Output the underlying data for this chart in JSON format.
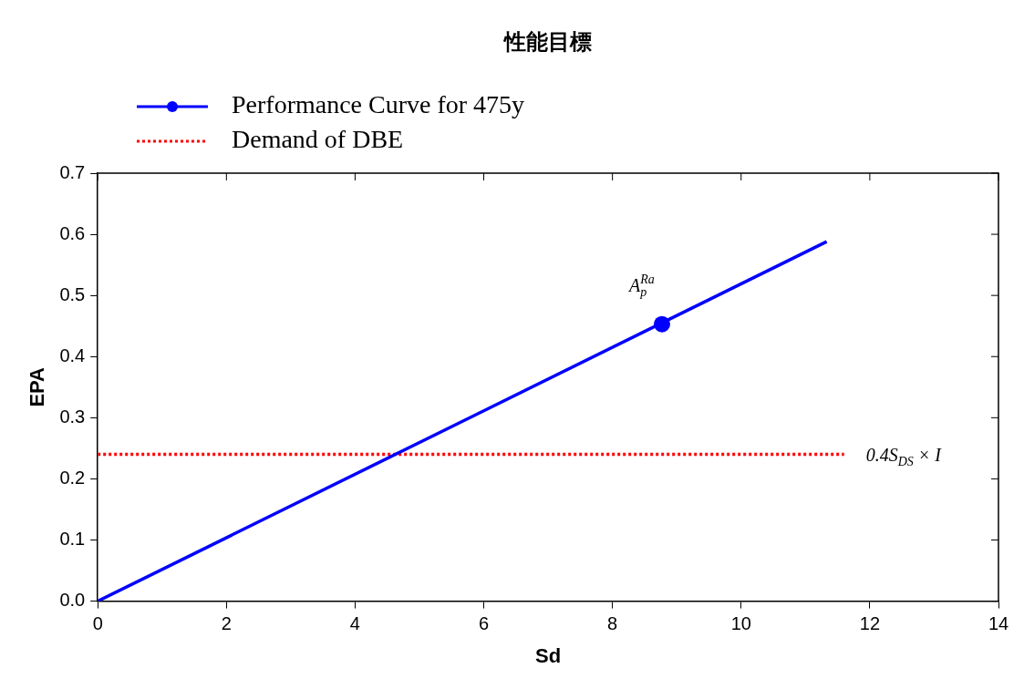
{
  "chart_data": {
    "type": "line",
    "title": "性能目標",
    "xlabel": "Sd",
    "ylabel": "EPA",
    "xlim": [
      0,
      14
    ],
    "xticks": [
      0,
      2,
      4,
      6,
      8,
      10,
      12,
      14
    ],
    "ylim": [
      0,
      0.7
    ],
    "yticks": [
      {
        "value": 0,
        "label": "0.0"
      },
      0.1,
      0.2,
      0.3,
      0.4,
      0.5,
      0.6,
      0.7
    ],
    "series": [
      {
        "name": "Performance Curve for 475y",
        "color": "#0000ff",
        "x": [
          0,
          11.33
        ],
        "values": [
          0,
          0.588
        ],
        "marker": "none",
        "line_style": "solid"
      },
      {
        "type": "scatter",
        "color": "#0000ff",
        "x": [
          8.77
        ],
        "values": [
          0.453
        ],
        "marker": "circle"
      },
      {
        "name": "Demand of DBE",
        "color": "#ff0000",
        "x": [
          0,
          11.6
        ],
        "values": [
          0.24,
          0.24
        ],
        "marker": "none",
        "line_style": "dotted"
      }
    ],
    "annotations": [
      {
        "text": "A$_{p}$$^{Ra}$",
        "x": 8.77,
        "y": 0.453
      },
      {
        "text": "0.4S$_{DS}$ × I",
        "x": 11.6,
        "y": 0.24
      }
    ],
    "legend": "top left",
    "grid": false
  }
}
